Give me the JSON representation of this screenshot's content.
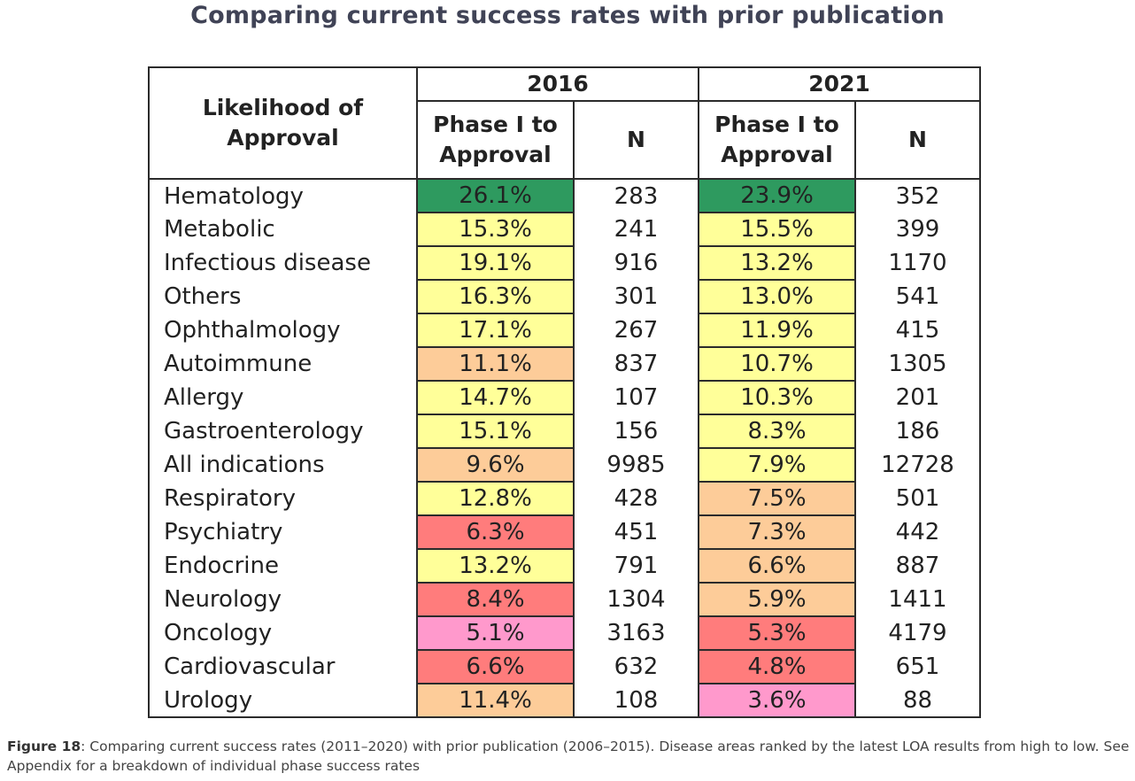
{
  "title": "Comparing current success rates with prior publication",
  "table": {
    "corner": "Likelihood of Approval",
    "years": [
      "2016",
      "2021"
    ],
    "sub_rate": "Phase I to Approval",
    "sub_n": "N",
    "colors": {
      "green": "#2e9a5f",
      "yellow": "#ffff99",
      "orange": "#fdcc99",
      "red": "#ff7c7c",
      "pink": "#ff99cc"
    },
    "rows": [
      {
        "area": "Hematology",
        "r2016": "26.1%",
        "c2016": "green",
        "n2016": "283",
        "r2021": "23.9%",
        "c2021": "green",
        "n2021": "352"
      },
      {
        "area": "Metabolic",
        "r2016": "15.3%",
        "c2016": "yellow",
        "n2016": "241",
        "r2021": "15.5%",
        "c2021": "yellow",
        "n2021": "399"
      },
      {
        "area": "Infectious disease",
        "r2016": "19.1%",
        "c2016": "yellow",
        "n2016": "916",
        "r2021": "13.2%",
        "c2021": "yellow",
        "n2021": "1170"
      },
      {
        "area": "Others",
        "r2016": "16.3%",
        "c2016": "yellow",
        "n2016": "301",
        "r2021": "13.0%",
        "c2021": "yellow",
        "n2021": "541"
      },
      {
        "area": "Ophthalmology",
        "r2016": "17.1%",
        "c2016": "yellow",
        "n2016": "267",
        "r2021": "11.9%",
        "c2021": "yellow",
        "n2021": "415"
      },
      {
        "area": "Autoimmune",
        "r2016": "11.1%",
        "c2016": "orange",
        "n2016": "837",
        "r2021": "10.7%",
        "c2021": "yellow",
        "n2021": "1305"
      },
      {
        "area": "Allergy",
        "r2016": "14.7%",
        "c2016": "yellow",
        "n2016": "107",
        "r2021": "10.3%",
        "c2021": "yellow",
        "n2021": "201"
      },
      {
        "area": "Gastroenterology",
        "r2016": "15.1%",
        "c2016": "yellow",
        "n2016": "156",
        "r2021": "8.3%",
        "c2021": "yellow",
        "n2021": "186"
      },
      {
        "area": "All indications",
        "r2016": "9.6%",
        "c2016": "orange",
        "n2016": "9985",
        "r2021": "7.9%",
        "c2021": "yellow",
        "n2021": "12728"
      },
      {
        "area": "Respiratory",
        "r2016": "12.8%",
        "c2016": "yellow",
        "n2016": "428",
        "r2021": "7.5%",
        "c2021": "orange",
        "n2021": "501"
      },
      {
        "area": "Psychiatry",
        "r2016": "6.3%",
        "c2016": "red",
        "n2016": "451",
        "r2021": "7.3%",
        "c2021": "orange",
        "n2021": "442"
      },
      {
        "area": "Endocrine",
        "r2016": "13.2%",
        "c2016": "yellow",
        "n2016": "791",
        "r2021": "6.6%",
        "c2021": "orange",
        "n2021": "887"
      },
      {
        "area": "Neurology",
        "r2016": "8.4%",
        "c2016": "red",
        "n2016": "1304",
        "r2021": "5.9%",
        "c2021": "orange",
        "n2021": "1411"
      },
      {
        "area": "Oncology",
        "r2016": "5.1%",
        "c2016": "pink",
        "n2016": "3163",
        "r2021": "5.3%",
        "c2021": "red",
        "n2021": "4179"
      },
      {
        "area": "Cardiovascular",
        "r2016": "6.6%",
        "c2016": "red",
        "n2016": "632",
        "r2021": "4.8%",
        "c2021": "red",
        "n2021": "651"
      },
      {
        "area": "Urology",
        "r2016": "11.4%",
        "c2016": "orange",
        "n2016": "108",
        "r2021": "3.6%",
        "c2021": "pink",
        "n2021": "88"
      }
    ]
  },
  "caption": {
    "label": "Figure 18",
    "text": ": Comparing current success rates (2011–2020) with prior publication (2006–2015). Disease areas ranked by the latest LOA results from high to low. See Appendix for a breakdown of individual phase success rates"
  }
}
